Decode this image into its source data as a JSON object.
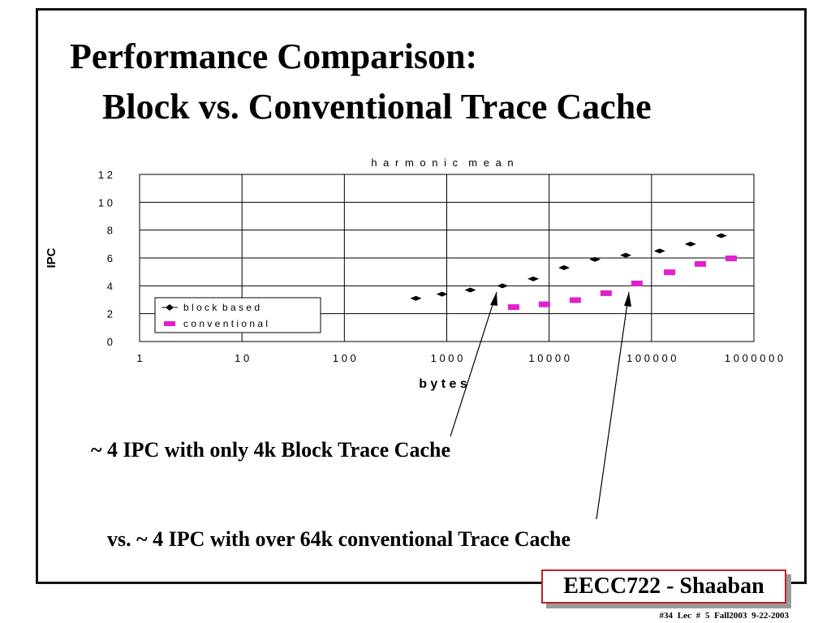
{
  "slide": {
    "title_line1": "Performance Comparison:",
    "title_line2": "Block vs. Conventional Trace Cache",
    "annotation1": "~ 4 IPC with only 4k Block Trace Cache",
    "annotation2": "vs. ~ 4 IPC  with over 64k conventional Trace Cache",
    "brand": "EECC722 - Shaaban",
    "footer": "#34   Lec # 5   Fall2003  9-22-2003"
  },
  "chart_data": {
    "type": "scatter",
    "title": "h a r m o n i c  m e a n",
    "xlabel": "b y t e s",
    "ylabel": "IPC",
    "x_scale": "log",
    "xlim": [
      1,
      1000000
    ],
    "ylim": [
      0,
      12
    ],
    "y_ticks": [
      0,
      2,
      4,
      6,
      8,
      10,
      12
    ],
    "y_tick_labels": [
      "0",
      "2",
      "4",
      "6",
      "8",
      "1 0",
      "1 2"
    ],
    "x_ticks": [
      1,
      10,
      100,
      1000,
      10000,
      100000,
      1000000
    ],
    "x_tick_labels": [
      "1",
      "1 0",
      "1 0 0",
      "1 0 0 0",
      "1 0 0 0 0",
      "1 0 0 0 0 0",
      "1 0 0 0 0 0 0"
    ],
    "grid": true,
    "legend_position": "bottom-left",
    "series": [
      {
        "name": "b l o c k  b a s e d",
        "marker": "diamond",
        "color": "#000000",
        "x": [
          500,
          900,
          1700,
          3500,
          7000,
          14000,
          28000,
          56000,
          120000,
          240000,
          480000
        ],
        "y": [
          3.1,
          3.4,
          3.7,
          4.0,
          4.5,
          5.3,
          5.9,
          6.2,
          6.5,
          7.0,
          7.6
        ]
      },
      {
        "name": "c o n v e n t i o n a l",
        "marker": "rect",
        "color": "#e020d0",
        "x": [
          4500,
          9000,
          18000,
          36000,
          72000,
          150000,
          300000,
          600000
        ],
        "y": [
          2.5,
          2.7,
          3.0,
          3.5,
          4.2,
          5.0,
          5.6,
          6.0
        ]
      }
    ]
  }
}
